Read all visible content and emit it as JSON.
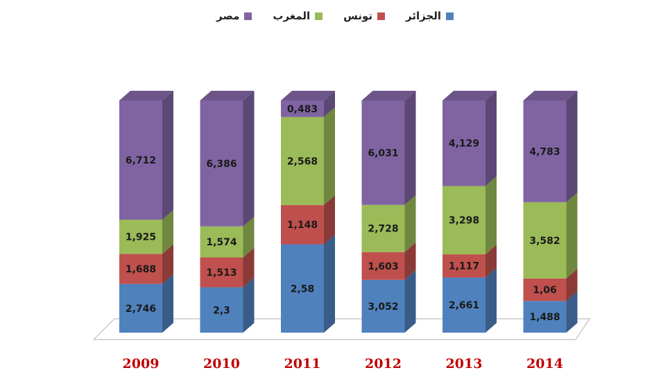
{
  "chart_data": {
    "type": "bar",
    "stacked": true,
    "three_d": true,
    "categories": [
      "2009",
      "2010",
      "2011",
      "2012",
      "2013",
      "2014"
    ],
    "series": [
      {
        "name": "الجزائر",
        "color": "#4F81BD",
        "values": [
          2.746,
          2.3,
          2.58,
          3.052,
          2.661,
          1.488
        ],
        "labels": [
          "2,746",
          "2,3",
          "2,58",
          "3,052",
          "2,661",
          "1,488"
        ]
      },
      {
        "name": "تونس",
        "color": "#C0504D",
        "values": [
          1.688,
          1.513,
          1.148,
          1.603,
          1.117,
          1.06
        ],
        "labels": [
          "1,688",
          "1,513",
          "1,148",
          "1,603",
          "1,117",
          "1,06"
        ]
      },
      {
        "name": "المغرب",
        "color": "#9BBB59",
        "values": [
          1.925,
          1.574,
          2.568,
          2.728,
          3.298,
          3.582
        ],
        "labels": [
          "1,925",
          "1,574",
          "2,568",
          "2,728",
          "3,298",
          "3,582"
        ]
      },
      {
        "name": "مصر",
        "color": "#8064A2",
        "values": [
          6.712,
          6.386,
          0.483,
          6.031,
          4.129,
          4.783
        ],
        "labels": [
          "6,712",
          "6,386",
          "0,483",
          "6,031",
          "4,129",
          "4,783"
        ]
      }
    ],
    "title": "",
    "xlabel": "",
    "ylabel": "",
    "legend_position": "top",
    "category_label_color": "#C00000",
    "grid": false
  }
}
